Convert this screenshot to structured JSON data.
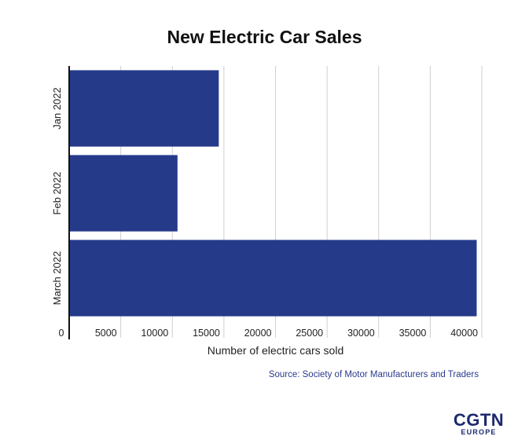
{
  "chart_data": {
    "type": "bar",
    "orientation": "horizontal",
    "title": "New Electric Car Sales",
    "xlabel": "Number of electric cars sold",
    "ylabel": "",
    "categories": [
      "Jan 2022",
      "Feb 2022",
      "March 2022"
    ],
    "values": [
      14500,
      10500,
      39500
    ],
    "xlim": [
      0,
      40000
    ],
    "xticks": [
      0,
      5000,
      10000,
      15000,
      20000,
      25000,
      30000,
      35000,
      40000
    ],
    "grid": "vertical",
    "legend": "none",
    "bar_color": "#263a8a"
  },
  "source": "Source: Society of Motor Manufacturers and Traders",
  "brand": {
    "name": "CGTN",
    "sub": "EUROPE",
    "color": "#1d2a6e"
  }
}
